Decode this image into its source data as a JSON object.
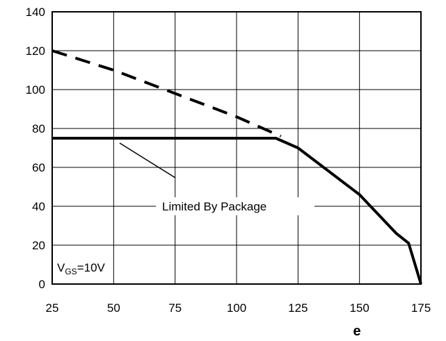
{
  "chart_data": {
    "type": "line",
    "title": "",
    "xlabel": "e",
    "ylabel": "",
    "xlim": [
      25,
      175
    ],
    "ylim": [
      0,
      140
    ],
    "x_ticks": [
      25,
      50,
      75,
      100,
      125,
      150,
      175
    ],
    "y_ticks": [
      0,
      20,
      40,
      60,
      80,
      100,
      120,
      140
    ],
    "grid": true,
    "series": [
      {
        "style": "dashed",
        "x": [
          25,
          50,
          75,
          100,
          118
        ],
        "y": [
          120,
          110,
          98,
          86,
          76
        ]
      },
      {
        "style": "solid",
        "x": [
          25,
          116,
          125,
          150,
          165,
          170,
          175
        ],
        "y": [
          75,
          75,
          70,
          46,
          26,
          21,
          0
        ]
      }
    ],
    "annotations": {
      "package_label": "Limited By Package",
      "vgs_main": "V",
      "vgs_sub": "GS",
      "vgs_value": "=10V"
    }
  }
}
